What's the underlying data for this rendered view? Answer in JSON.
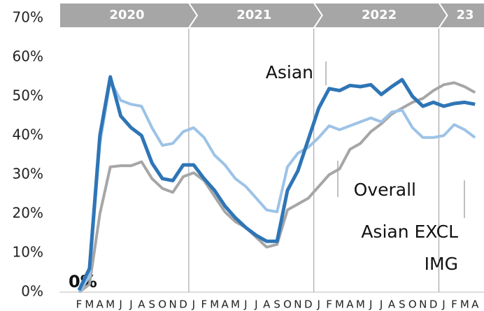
{
  "chart_data": {
    "type": "line",
    "years": [
      "2020",
      "2021",
      "2022",
      "23"
    ],
    "categories": [
      "F",
      "M",
      "A",
      "M",
      "J",
      "J",
      "A",
      "S",
      "O",
      "N",
      "D",
      "J",
      "F",
      "M",
      "A",
      "M",
      "J",
      "J",
      "A",
      "S",
      "O",
      "N",
      "D",
      "J",
      "F",
      "M",
      "A",
      "M",
      "J",
      "J",
      "A",
      "S",
      "O",
      "N",
      "D",
      "J",
      "F",
      "M",
      "A"
    ],
    "series": [
      {
        "name": "Overall",
        "color": "#a6a6a6",
        "values": [
          0,
          2,
          20,
          32,
          32.3,
          32.3,
          33.3,
          29,
          26.5,
          25.5,
          29.5,
          30.5,
          28.5,
          24.5,
          20.5,
          18,
          16.5,
          14,
          11.5,
          12.2,
          21,
          22.5,
          24,
          27,
          30,
          31.5,
          36.5,
          38,
          41,
          43,
          45.5,
          47,
          48.5,
          49.5,
          51.5,
          53,
          53.5,
          52.5,
          51
        ]
      },
      {
        "name": "Asian EXCL IMG",
        "color": "#9dc3e6",
        "values": [
          0,
          4,
          38,
          54,
          49,
          48,
          47.5,
          42,
          37.5,
          38,
          41,
          42,
          39.5,
          35,
          32.5,
          29,
          27,
          24,
          21,
          20.5,
          32,
          35.5,
          37,
          39.5,
          42.5,
          41.5,
          42.5,
          43.5,
          44.5,
          43.5,
          46,
          46.5,
          42,
          39.5,
          39.5,
          40,
          42.8,
          41.5,
          39.5
        ]
      },
      {
        "name": "Asian",
        "color": "#2e75b6",
        "values": [
          0.5,
          6,
          40,
          55,
          45,
          42,
          40,
          33,
          29,
          28.5,
          32.5,
          32.5,
          29,
          26,
          22,
          19,
          16.5,
          14.5,
          13,
          13,
          26,
          31,
          39,
          47,
          52,
          51.5,
          52.8,
          52.5,
          53,
          50.5,
          52.5,
          54.3,
          50,
          47.5,
          48.5,
          47.5,
          48.2,
          48.5,
          48
        ]
      }
    ],
    "annotations": [
      "0%"
    ],
    "ylim": [
      0,
      70
    ],
    "yticks": [
      {
        "value": 0,
        "label": "0%"
      },
      {
        "value": 10,
        "label": "10%"
      },
      {
        "value": 20,
        "label": "20%"
      },
      {
        "value": 30,
        "label": "30%"
      },
      {
        "value": 40,
        "label": "40%"
      },
      {
        "value": 50,
        "label": "50%"
      },
      {
        "value": 60,
        "label": "60%"
      },
      {
        "value": 70,
        "label": "70%"
      }
    ],
    "grid": false
  }
}
